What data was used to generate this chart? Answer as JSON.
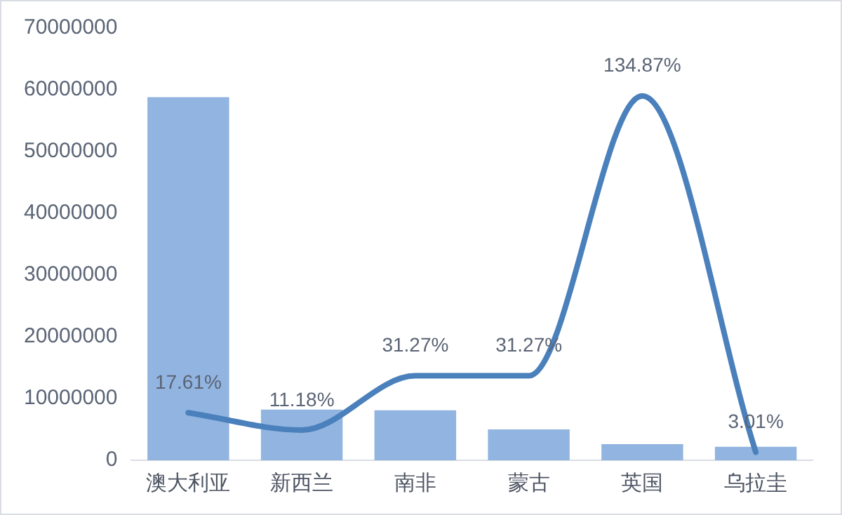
{
  "chart_data": {
    "type": "bar",
    "categories": [
      "澳大利亚",
      "新西兰",
      "南非",
      "蒙古",
      "英国",
      "乌拉圭"
    ],
    "series": [
      {
        "color": "#92b4e0",
        "values": [
          58800000,
          8200000,
          8100000,
          5000000,
          2600000,
          2200000
        ]
      },
      {
        "type": "line",
        "axis": "y2",
        "color": "#4a80bb",
        "values": [
          17.61,
          11.18,
          31.27,
          31.27,
          134.87,
          3.01
        ],
        "value_labels": [
          "17.61%",
          "11.18%",
          "31.27%",
          "31.27%",
          "134.87%",
          "3.01%"
        ]
      }
    ],
    "ylim": [
      0,
      70000000
    ],
    "yticks": [
      0,
      10000000,
      20000000,
      30000000,
      40000000,
      50000000,
      60000000,
      70000000
    ],
    "tick_labels": "xy",
    "grid": false,
    "legend": false,
    "marker": "none",
    "line_style": "solid"
  }
}
